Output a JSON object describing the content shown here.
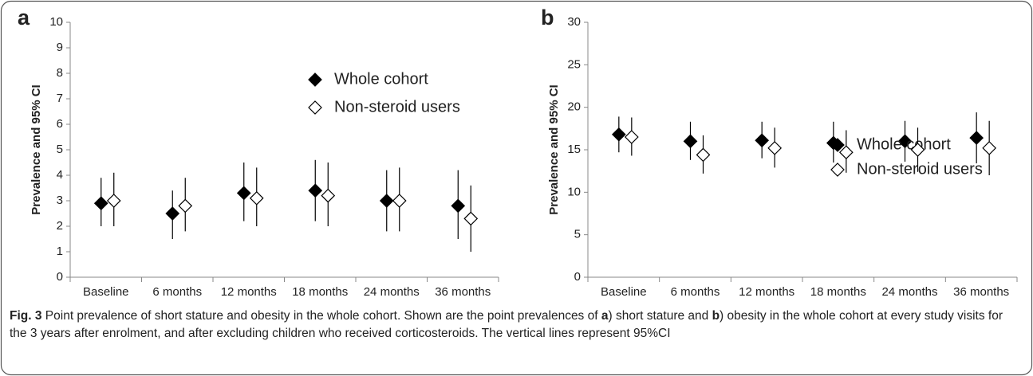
{
  "chart_data": [
    {
      "type": "errorbar",
      "panel": "a",
      "ylabel": "Prevalence and 95% CI",
      "categories": [
        "Baseline",
        "6 months",
        "12 months",
        "18 months",
        "24 months",
        "36 months"
      ],
      "ylim": [
        0,
        10
      ],
      "yticks": [
        0,
        1,
        2,
        3,
        4,
        5,
        6,
        7,
        8,
        9,
        10
      ],
      "series": [
        {
          "name": "Whole cohort",
          "color": "#000000",
          "marker": "filled-diamond",
          "values": [
            2.9,
            2.5,
            3.3,
            3.4,
            3.0,
            2.8
          ],
          "lower": [
            2.0,
            1.5,
            2.2,
            2.2,
            1.8,
            1.5
          ],
          "upper": [
            3.9,
            3.4,
            4.5,
            4.6,
            4.2,
            4.2
          ]
        },
        {
          "name": "Non-steroid users",
          "color": "#000000",
          "marker": "open-diamond",
          "values": [
            3.0,
            2.8,
            3.1,
            3.2,
            3.0,
            2.3
          ],
          "lower": [
            2.0,
            1.8,
            2.0,
            2.0,
            1.8,
            1.0
          ],
          "upper": [
            4.1,
            3.9,
            4.3,
            4.5,
            4.3,
            3.6
          ]
        }
      ]
    },
    {
      "type": "errorbar",
      "panel": "b",
      "ylabel": "Prevalence and 95% CI",
      "categories": [
        "Baseline",
        "6 months",
        "12 months",
        "18 months",
        "24 months",
        "36 months"
      ],
      "ylim": [
        0,
        30
      ],
      "yticks": [
        0,
        5,
        10,
        15,
        20,
        25,
        30
      ],
      "series": [
        {
          "name": "Whole cohort",
          "color": "#000000",
          "marker": "filled-diamond",
          "values": [
            16.8,
            16.0,
            16.1,
            15.8,
            16.0,
            16.4
          ],
          "lower": [
            14.7,
            13.8,
            14.0,
            13.5,
            13.6,
            13.4
          ],
          "upper": [
            18.9,
            18.3,
            18.3,
            18.3,
            18.4,
            19.4
          ]
        },
        {
          "name": "Non-steroid users",
          "color": "#000000",
          "marker": "open-diamond",
          "values": [
            16.5,
            14.4,
            15.2,
            14.7,
            15.0,
            15.2
          ],
          "lower": [
            14.3,
            12.2,
            12.9,
            12.3,
            12.4,
            12.0
          ],
          "upper": [
            18.8,
            16.7,
            17.6,
            17.3,
            17.6,
            18.4
          ]
        }
      ]
    }
  ],
  "caption": {
    "label": "Fig. 3",
    "parts": [
      " Point prevalence of short stature and obesity in the whole cohort. Shown are the point prevalences of ",
      "a",
      ") short stature and ",
      "b",
      ") obesity in the whole cohort at every study visits for the 3 years after enrolment, and after excluding children who received corticosteroids. The vertical lines represent 95%CI"
    ]
  }
}
